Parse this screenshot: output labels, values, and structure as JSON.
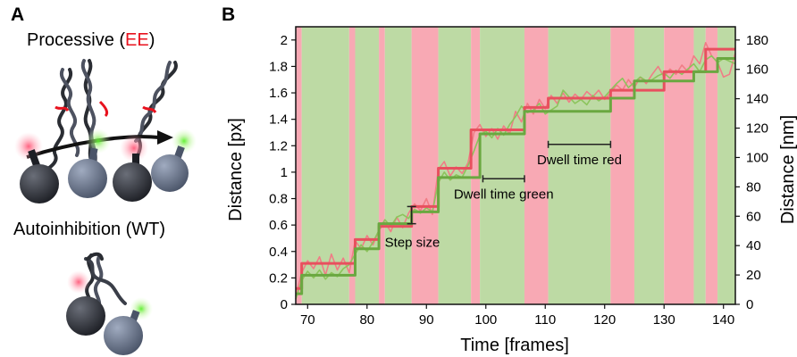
{
  "panel_a": {
    "letter": "A",
    "caption_top_prefix": "Processive (",
    "caption_top_highlight": "EE",
    "caption_top_suffix": ")",
    "caption_bottom": "Autoinhibition (WT)",
    "highlight_color": "#e8121e"
  },
  "panel_b": {
    "letter": "B"
  },
  "chart_data": {
    "type": "line",
    "xlabel": "Time [frames]",
    "ylabel": "Distance [px]",
    "ylabel_right": "Distance [nm]",
    "xlim": [
      68,
      142
    ],
    "ylim": [
      0,
      2.1
    ],
    "ylim_right": [
      0,
      189
    ],
    "x_ticks": [
      70,
      80,
      90,
      100,
      110,
      120,
      130,
      140
    ],
    "y_ticks": [
      0,
      0.2,
      0.4,
      0.6,
      0.8,
      1,
      1.2,
      1.4,
      1.6,
      1.8,
      2
    ],
    "y_ticks_right": [
      0,
      20,
      40,
      60,
      80,
      100,
      120,
      140,
      160,
      180
    ],
    "background_bands": [
      {
        "start": 68,
        "end": 69,
        "color": "red"
      },
      {
        "start": 69,
        "end": 77,
        "color": "green"
      },
      {
        "start": 77,
        "end": 78,
        "color": "red"
      },
      {
        "start": 78,
        "end": 82,
        "color": "green"
      },
      {
        "start": 82,
        "end": 83,
        "color": "red"
      },
      {
        "start": 83,
        "end": 87.5,
        "color": "green"
      },
      {
        "start": 87.5,
        "end": 92,
        "color": "red"
      },
      {
        "start": 92,
        "end": 97.5,
        "color": "green"
      },
      {
        "start": 97.5,
        "end": 99,
        "color": "red"
      },
      {
        "start": 99,
        "end": 106.5,
        "color": "green"
      },
      {
        "start": 106.5,
        "end": 110.5,
        "color": "red"
      },
      {
        "start": 110.5,
        "end": 121,
        "color": "green"
      },
      {
        "start": 121,
        "end": 125,
        "color": "red"
      },
      {
        "start": 125,
        "end": 130,
        "color": "green"
      },
      {
        "start": 130,
        "end": 135,
        "color": "red"
      },
      {
        "start": 135,
        "end": 137,
        "color": "green"
      },
      {
        "start": 137,
        "end": 139,
        "color": "red"
      },
      {
        "start": 139,
        "end": 142,
        "color": "green"
      }
    ],
    "series": [
      {
        "color": "#e8505e",
        "kind": "step",
        "x": [
          68,
          69,
          77,
          78,
          82,
          87.5,
          92,
          97.5,
          106.5,
          110.5,
          121,
          130,
          137,
          142
        ],
        "y": [
          0.12,
          0.31,
          0.31,
          0.49,
          0.59,
          0.74,
          1.03,
          1.32,
          1.49,
          1.56,
          1.62,
          1.76,
          1.93,
          1.93
        ]
      },
      {
        "color": "#6aa840",
        "kind": "step",
        "x": [
          68,
          69,
          77,
          78,
          82,
          87.5,
          92,
          97.5,
          99,
          106.5,
          110.5,
          121,
          125,
          130,
          135,
          139,
          142
        ],
        "y": [
          0.08,
          0.22,
          0.22,
          0.42,
          0.61,
          0.7,
          0.96,
          0.96,
          1.29,
          1.46,
          1.46,
          1.56,
          1.69,
          1.69,
          1.76,
          1.86,
          1.86
        ]
      },
      {
        "color": "#f07d86",
        "kind": "noisy",
        "x": [
          68,
          69,
          70,
          71,
          72,
          73,
          74,
          75,
          76,
          77,
          78,
          79,
          80,
          81,
          82,
          83,
          84,
          85,
          86,
          87,
          88,
          89,
          90,
          91,
          92,
          93,
          94,
          95,
          96,
          97,
          98,
          99,
          100,
          101,
          102,
          103,
          104,
          105,
          106,
          107,
          108,
          109,
          110,
          111,
          112,
          113,
          114,
          115,
          116,
          117,
          118,
          119,
          120,
          121,
          122,
          123,
          124,
          125,
          126,
          127,
          128,
          129,
          130,
          131,
          132,
          133,
          134,
          135,
          136,
          137,
          138,
          139,
          140,
          141,
          142
        ],
        "y": [
          0.06,
          0.24,
          0.33,
          0.27,
          0.36,
          0.22,
          0.38,
          0.26,
          0.35,
          0.24,
          0.48,
          0.42,
          0.52,
          0.45,
          0.56,
          0.62,
          0.55,
          0.66,
          0.58,
          0.69,
          0.76,
          0.71,
          0.8,
          0.68,
          1.02,
          1.08,
          0.97,
          1.04,
          0.99,
          1.07,
          1.3,
          1.36,
          1.27,
          1.33,
          1.25,
          1.35,
          1.29,
          1.46,
          1.38,
          1.52,
          1.44,
          1.55,
          1.48,
          1.58,
          1.52,
          1.6,
          1.53,
          1.59,
          1.55,
          1.61,
          1.57,
          1.62,
          1.55,
          1.6,
          1.66,
          1.62,
          1.7,
          1.64,
          1.72,
          1.67,
          1.74,
          1.8,
          1.72,
          1.78,
          1.74,
          1.81,
          1.76,
          1.88,
          1.82,
          1.98,
          1.88,
          1.83,
          1.72,
          1.74,
          1.9
        ]
      },
      {
        "color": "#8cc45c",
        "kind": "noisy",
        "x": [
          68,
          69,
          70,
          71,
          72,
          73,
          74,
          75,
          76,
          77,
          78,
          79,
          80,
          81,
          82,
          83,
          84,
          85,
          86,
          87,
          88,
          89,
          90,
          91,
          92,
          93,
          94,
          95,
          96,
          97,
          98,
          99,
          100,
          101,
          102,
          103,
          104,
          105,
          106,
          107,
          108,
          109,
          110,
          111,
          112,
          113,
          114,
          115,
          116,
          117,
          118,
          119,
          120,
          121,
          122,
          123,
          124,
          125,
          126,
          127,
          128,
          129,
          130,
          131,
          132,
          133,
          134,
          135,
          136,
          137,
          138,
          139,
          140,
          141,
          142
        ],
        "y": [
          0.04,
          0.18,
          0.25,
          0.2,
          0.26,
          0.19,
          0.24,
          0.21,
          0.27,
          0.3,
          0.38,
          0.45,
          0.4,
          0.47,
          0.56,
          0.64,
          0.59,
          0.66,
          0.68,
          0.65,
          0.72,
          0.69,
          0.73,
          0.7,
          0.92,
          1.0,
          0.94,
          0.98,
          0.96,
          1.05,
          1.16,
          1.28,
          1.31,
          1.26,
          1.33,
          1.28,
          1.36,
          1.42,
          1.5,
          1.45,
          1.47,
          1.52,
          1.44,
          1.47,
          1.5,
          1.62,
          1.57,
          1.52,
          1.55,
          1.51,
          1.58,
          1.54,
          1.57,
          1.62,
          1.67,
          1.71,
          1.64,
          1.68,
          1.72,
          1.69,
          1.7,
          1.73,
          1.75,
          1.71,
          1.77,
          1.74,
          1.78,
          1.82,
          1.76,
          1.85,
          1.88,
          1.83,
          1.86,
          1.84,
          1.82
        ]
      }
    ],
    "annotations": [
      {
        "kind": "bracket_vertical",
        "text": "Step size",
        "x": 87.5,
        "y_low": 0.61,
        "y_high": 0.74
      },
      {
        "kind": "bracket_horizontal",
        "text": "Dwell time green",
        "x_start": 99.5,
        "x_end": 106.5,
        "y": 0.95
      },
      {
        "kind": "bracket_horizontal",
        "text": "Dwell time red",
        "x_start": 110.5,
        "x_end": 121,
        "y": 1.21
      }
    ],
    "band_colors": {
      "red": "#f8a9b4",
      "green": "#bddaa4"
    }
  }
}
